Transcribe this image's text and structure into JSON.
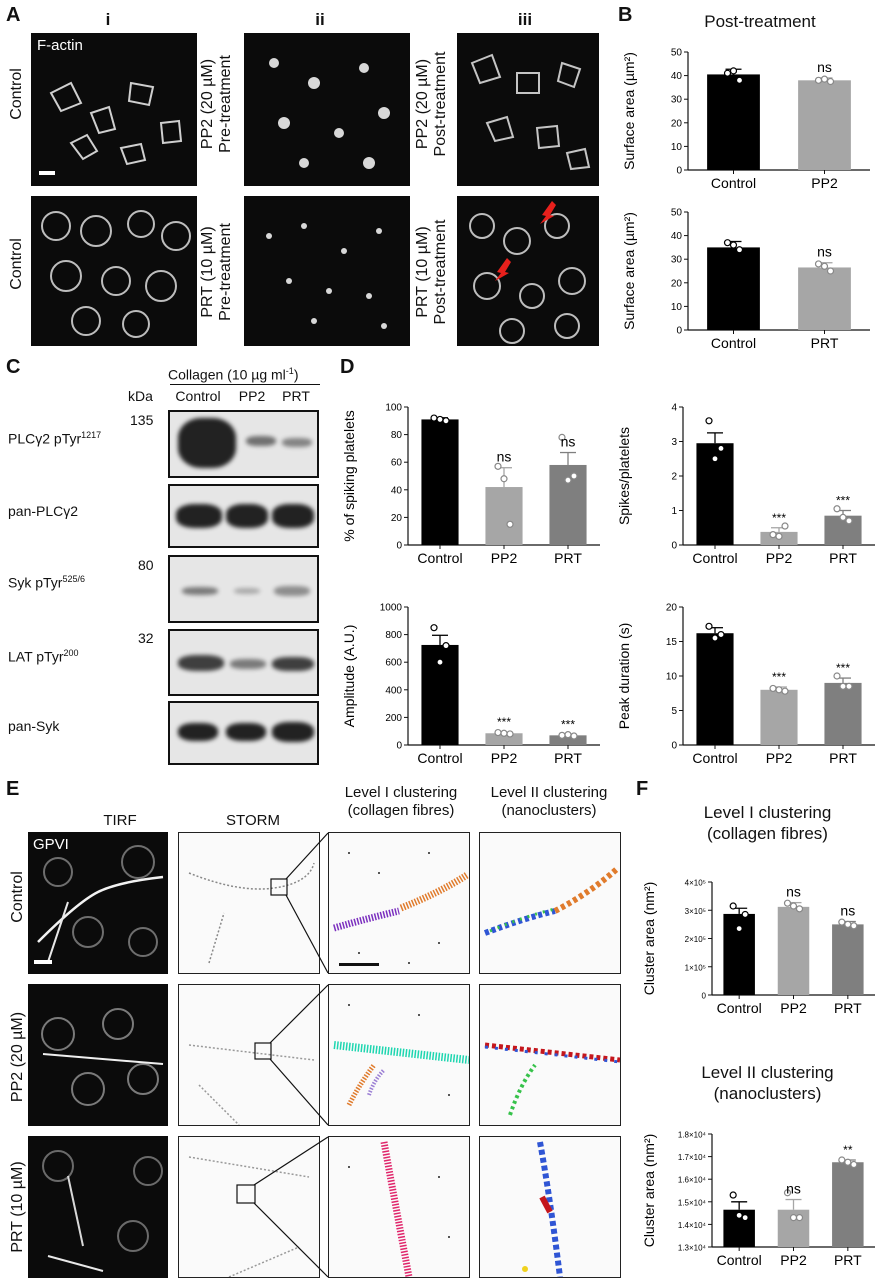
{
  "panel_letters": {
    "A": "A",
    "B": "B",
    "C": "C",
    "D": "D",
    "E": "E",
    "F": "F"
  },
  "panelA": {
    "cols": [
      "i",
      "ii",
      "iii"
    ],
    "overlay": "F-actin",
    "row_labels": {
      "control_top": "Control",
      "control_bottom": "Control",
      "pp2_pre_line1": "PP2 (20 µM)",
      "pp2_pre_line2": "Pre-treatment",
      "prt_pre_line1": "PRT (10 µM)",
      "prt_pre_line2": "Pre-treatment",
      "pp2_post_line1": "PP2 (20 µM)",
      "pp2_post_line2": "Post-treatment",
      "prt_post_line1": "PRT (10 µM)",
      "prt_post_line2": "Post-treatment"
    },
    "arrow_color": "#e8201c"
  },
  "panelB": {
    "title": "Post-treatment",
    "bar_colors": [
      "#000000",
      "#a6a6a6"
    ]
  },
  "panelC": {
    "header": "Collagen (10 µg ml",
    "header_sup": "-1",
    "header_end": ")",
    "kda": "kDa",
    "lanes": [
      "Control",
      "PP2",
      "PRT"
    ],
    "markers": [
      "135",
      "80",
      "32"
    ],
    "blots": [
      {
        "label": "PLCγ2 pTyr",
        "sup": "1217"
      },
      {
        "label": "pan-PLCγ2",
        "sup": ""
      },
      {
        "label": "Syk pTyr",
        "sup": "525/6"
      },
      {
        "label": "LAT pTyr",
        "sup": "200"
      },
      {
        "label": "pan-Syk",
        "sup": ""
      }
    ]
  },
  "panelE": {
    "col_tirf": "TIRF",
    "col_storm": "STORM",
    "col_level1_line1": "Level I clustering",
    "col_level1_line2": "(collagen fibres)",
    "col_level2_line1": "Level II clustering",
    "col_level2_line2": "(nanoclusters)",
    "overlay": "GPVI",
    "rows": [
      "Control",
      "PP2 (20 µM)",
      "PRT (10 µM)"
    ],
    "cluster_colors": [
      "#7b2fbf",
      "#e07b2c",
      "#1ed6b0",
      "#e0246a",
      "#2f55d4",
      "#c4161c",
      "#f0d21e",
      "#36c24a"
    ]
  },
  "panelF": {
    "title1_line1": "Level I clustering",
    "title1_line2": "(collagen fibres)",
    "title2_line1": "Level II clustering",
    "title2_line2": "(nanoclusters)",
    "bar_colors": [
      "#000000",
      "#a6a6a6",
      "#7f7f7f"
    ]
  },
  "chart_data": [
    {
      "id": "B1",
      "type": "bar",
      "categories": [
        "Control",
        "PP2"
      ],
      "values": [
        40.5,
        38.0
      ],
      "errors": [
        2.2,
        1.0
      ],
      "points": [
        [
          41,
          38,
          42
        ],
        [
          38,
          37.5,
          38.5
        ]
      ],
      "ylabel": "Surface area (µm²)",
      "ylim": [
        0,
        50
      ],
      "yticks": [
        "0",
        "10",
        "20",
        "30",
        "40",
        "50"
      ],
      "annotations": [
        "",
        "ns"
      ]
    },
    {
      "id": "B2",
      "type": "bar",
      "categories": [
        "Control",
        "PRT"
      ],
      "values": [
        35,
        26.5
      ],
      "errors": [
        2.5,
        2.0
      ],
      "points": [
        [
          37,
          34,
          36
        ],
        [
          28,
          25,
          27
        ]
      ],
      "ylabel": "Surface area (µm²)",
      "ylim": [
        0,
        50
      ],
      "yticks": [
        "0",
        "10",
        "20",
        "30",
        "40",
        "50"
      ],
      "annotations": [
        "",
        "ns"
      ]
    },
    {
      "id": "D1",
      "type": "bar",
      "categories": [
        "Control",
        "PP2",
        "PRT"
      ],
      "values": [
        91,
        42,
        58
      ],
      "errors": [
        1.2,
        14,
        9
      ],
      "points": [
        [
          92,
          90,
          91
        ],
        [
          57,
          15,
          48
        ],
        [
          78,
          50,
          47
        ]
      ],
      "ylabel": "% of spiking platelets",
      "ylim": [
        0,
        100
      ],
      "yticks": [
        "0",
        "20",
        "40",
        "60",
        "80",
        "100"
      ],
      "annotations": [
        "",
        "ns",
        "ns"
      ]
    },
    {
      "id": "D2",
      "type": "bar",
      "categories": [
        "Control",
        "PP2",
        "PRT"
      ],
      "values": [
        2.95,
        0.38,
        0.85
      ],
      "errors": [
        0.3,
        0.12,
        0.15
      ],
      "points": [
        [
          3.6,
          2.8,
          2.5
        ],
        [
          0.3,
          0.55,
          0.25
        ],
        [
          1.05,
          0.7,
          0.8
        ]
      ],
      "ylabel": "Spikes/platelets",
      "ylim": [
        0,
        4
      ],
      "yticks": [
        "0",
        "1",
        "2",
        "3",
        "4"
      ],
      "annotations": [
        "",
        "***",
        "***"
      ]
    },
    {
      "id": "D3",
      "type": "bar",
      "categories": [
        "Control",
        "PP2",
        "PRT"
      ],
      "values": [
        725,
        85,
        70
      ],
      "errors": [
        70,
        8,
        6
      ],
      "points": [
        [
          850,
          720,
          600
        ],
        [
          90,
          80,
          85
        ],
        [
          70,
          65,
          75
        ]
      ],
      "ylabel": "Amplitude (A.U.)",
      "ylim": [
        0,
        1000
      ],
      "yticks": [
        "0",
        "200",
        "400",
        "600",
        "800",
        "1000"
      ],
      "annotations": [
        "",
        "***",
        "***"
      ]
    },
    {
      "id": "D4",
      "type": "bar",
      "categories": [
        "Control",
        "PP2",
        "PRT"
      ],
      "values": [
        16.2,
        8.0,
        9.0
      ],
      "errors": [
        0.8,
        0.4,
        0.7
      ],
      "points": [
        [
          17.2,
          16.0,
          15.5
        ],
        [
          8.2,
          7.8,
          8.0
        ],
        [
          10.0,
          8.5,
          8.5
        ]
      ],
      "ylabel": "Peak duration (s)",
      "ylim": [
        0,
        20
      ],
      "yticks": [
        "0",
        "5",
        "10",
        "15",
        "20"
      ],
      "annotations": [
        "",
        "***",
        "***"
      ]
    },
    {
      "id": "F1",
      "type": "bar",
      "categories": [
        "Control",
        "PP2",
        "PRT"
      ],
      "values": [
        287000,
        312000,
        250000
      ],
      "errors": [
        20000,
        15000,
        10000
      ],
      "points": [
        [
          315000,
          285000,
          235000
        ],
        [
          325000,
          305000,
          315000
        ],
        [
          258000,
          245000,
          250000
        ]
      ],
      "ylabel": "Cluster area (nm²)",
      "ylim": [
        0,
        400000
      ],
      "yticks": [
        "0",
        "1×10⁵",
        "2×10⁵",
        "3×10⁵",
        "4×10⁵"
      ],
      "annotations": [
        "",
        "ns",
        "ns"
      ]
    },
    {
      "id": "F2",
      "type": "bar",
      "categories": [
        "Control",
        "PP2",
        "PRT"
      ],
      "values": [
        14650,
        14650,
        16750
      ],
      "errors": [
        350,
        450,
        100
      ],
      "points": [
        [
          15300,
          14300,
          14400
        ],
        [
          15400,
          14300,
          14300
        ],
        [
          16850,
          16650,
          16750
        ]
      ],
      "ylabel": "Cluster area (nm²)",
      "ylim": [
        13000,
        18000
      ],
      "yticks": [
        "1.3×10⁴",
        "1.4×10⁴",
        "1.5×10⁴",
        "1.6×10⁴",
        "1.7×10⁴",
        "1.8×10⁴"
      ],
      "annotations": [
        "",
        "ns",
        "**"
      ]
    }
  ]
}
